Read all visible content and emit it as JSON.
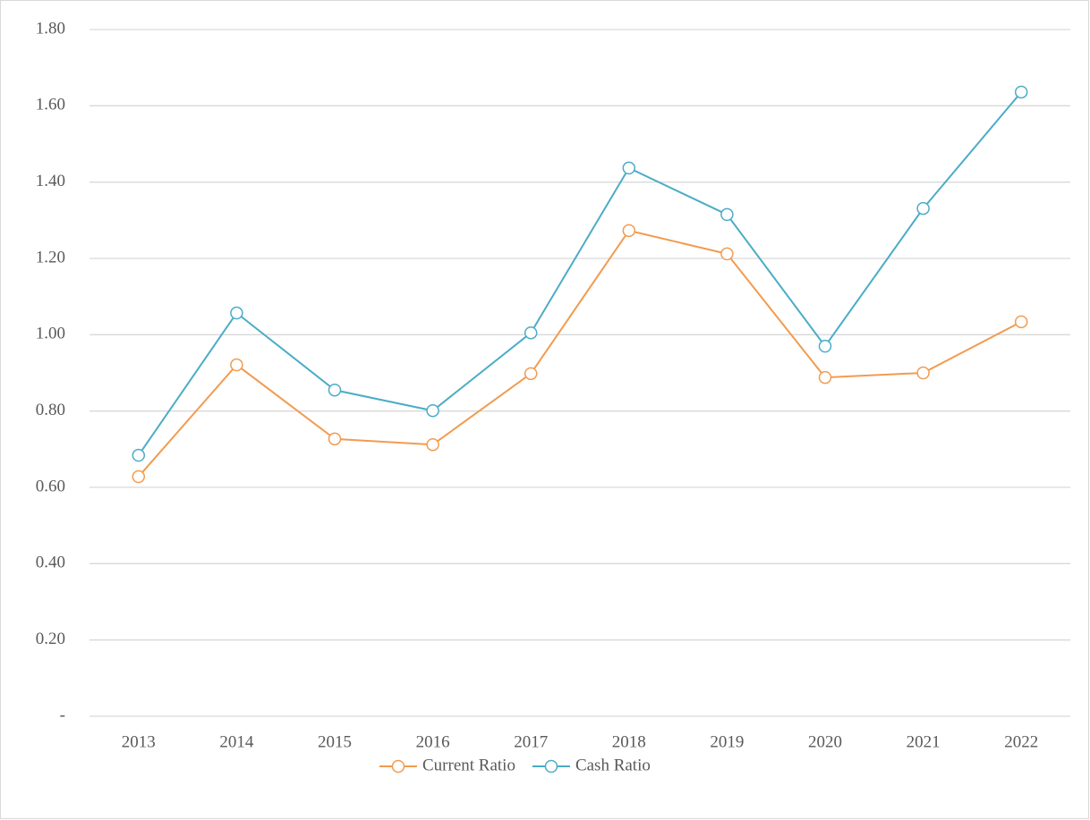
{
  "chart_data": {
    "type": "line",
    "categories": [
      "2013",
      "2014",
      "2015",
      "2016",
      "2017",
      "2018",
      "2019",
      "2020",
      "2021",
      "2022"
    ],
    "series": [
      {
        "name": "Current Ratio",
        "color": "#f29b4f",
        "values": [
          0.628,
          0.921,
          0.727,
          0.712,
          0.898,
          1.273,
          1.212,
          0.888,
          0.9,
          1.034
        ]
      },
      {
        "name": "Cash Ratio",
        "color": "#4bacc6",
        "values": [
          0.684,
          1.057,
          0.855,
          0.801,
          1.005,
          1.437,
          1.315,
          0.97,
          1.331,
          1.636
        ]
      }
    ],
    "ylim": [
      0,
      1.8
    ],
    "yticks": [
      {
        "value": 0,
        "label": "-"
      },
      {
        "value": 0.2,
        "label": "0.20"
      },
      {
        "value": 0.4,
        "label": "0.40"
      },
      {
        "value": 0.6,
        "label": "0.60"
      },
      {
        "value": 0.8,
        "label": "0.80"
      },
      {
        "value": 1.0,
        "label": "1.00"
      },
      {
        "value": 1.2,
        "label": "1.20"
      },
      {
        "value": 1.4,
        "label": "1.40"
      },
      {
        "value": 1.6,
        "label": "1.60"
      },
      {
        "value": 1.8,
        "label": "1.80"
      }
    ],
    "grid": true,
    "legend": "bottom"
  }
}
